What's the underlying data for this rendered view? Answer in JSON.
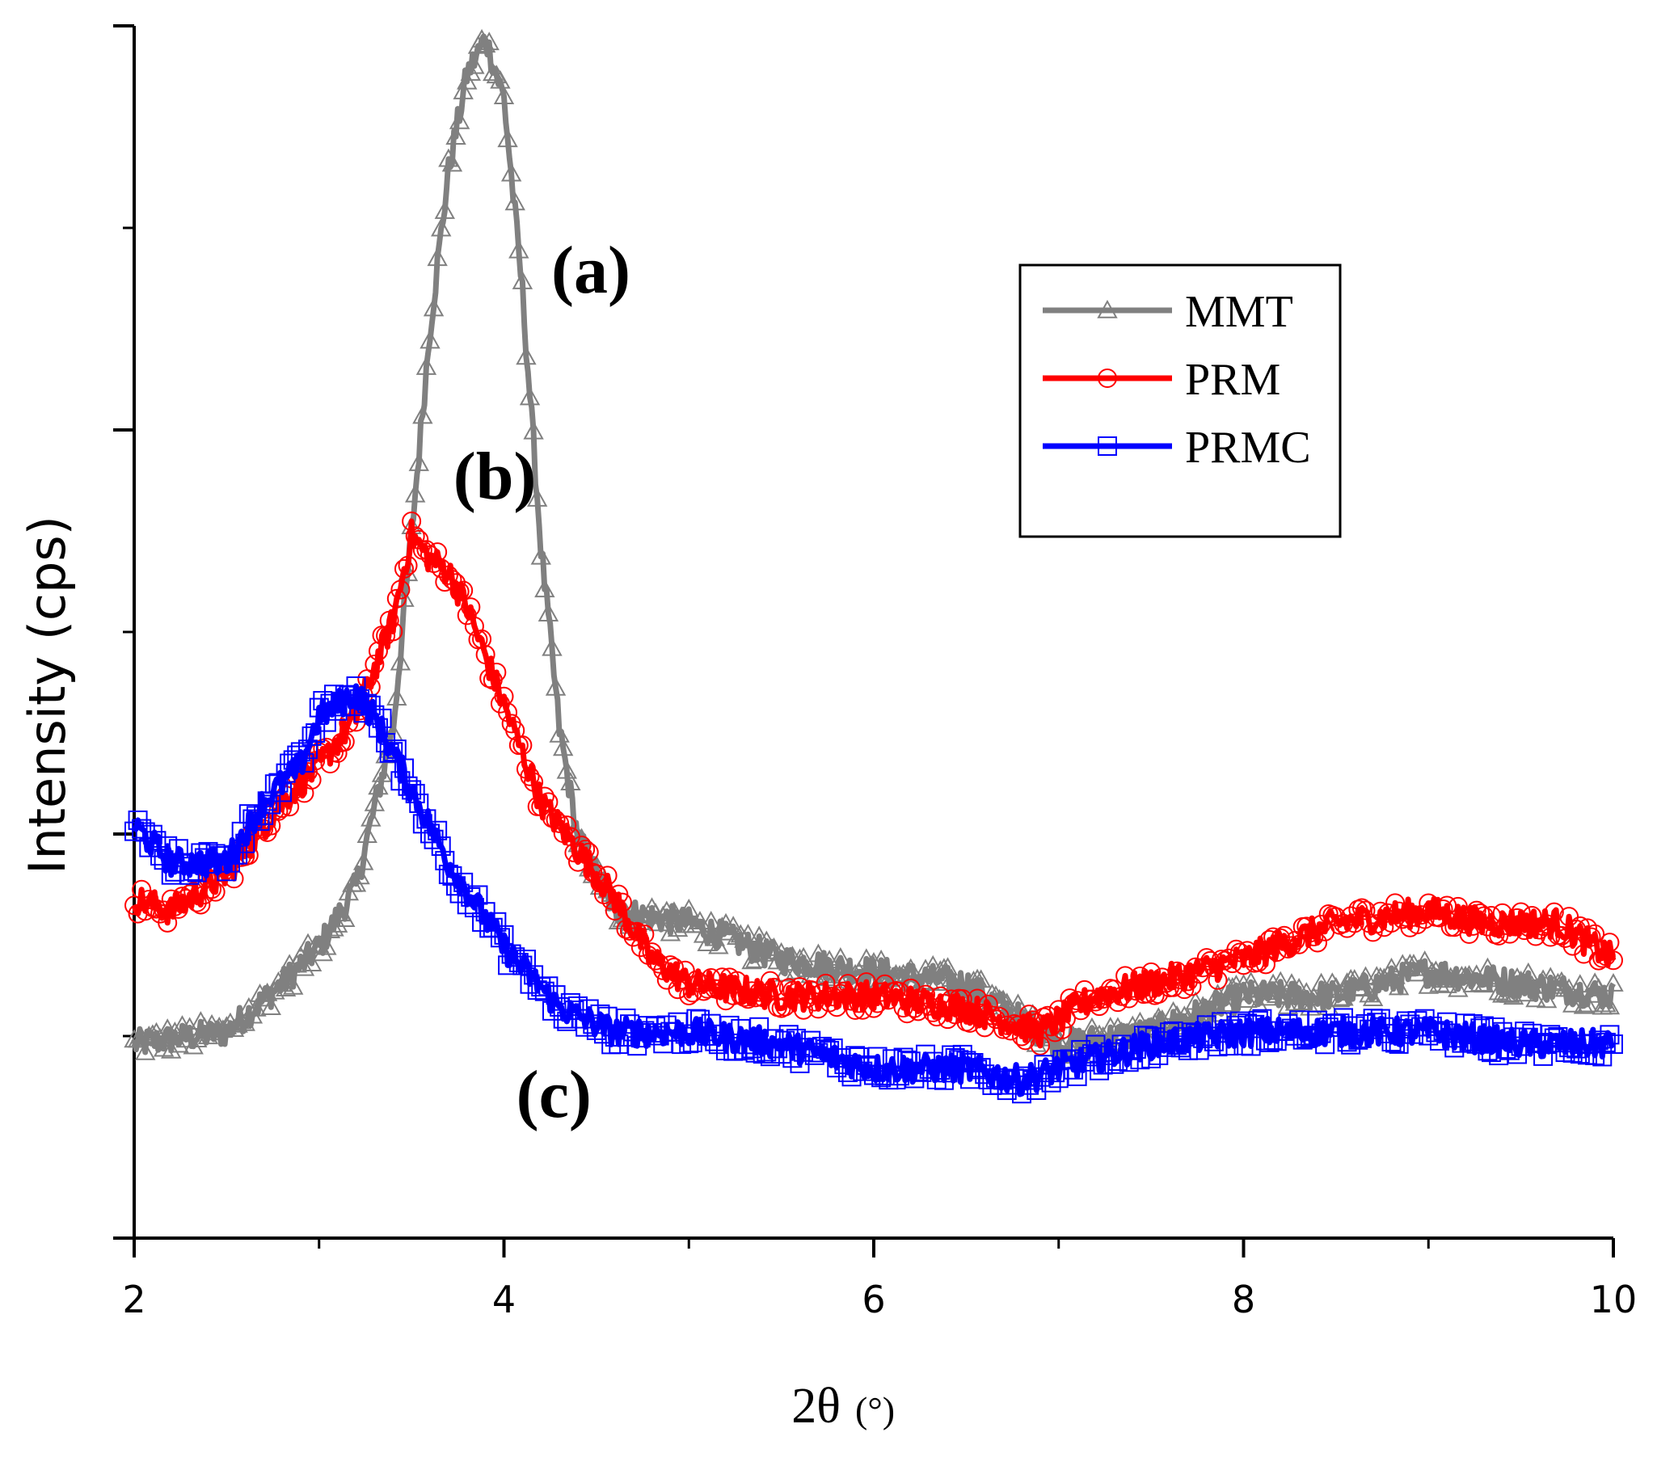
{
  "chart_data": {
    "type": "line",
    "xlabel": "2θ",
    "xlabel_unit": "(°)",
    "ylabel": "Intensity (cps)",
    "xlim": [
      2,
      10
    ],
    "ylim": [
      0,
      100
    ],
    "x_ticks": [
      2,
      4,
      6,
      8,
      10
    ],
    "x_tick_labels": [
      "2",
      "4",
      "6",
      "8",
      "10"
    ],
    "y_tick_labels_shown": false,
    "grid": false,
    "legend_position": "top-right",
    "series": [
      {
        "name": "MMT",
        "color": "#808080",
        "marker": "triangle",
        "x": [
          2.0,
          2.5,
          2.8,
          3.0,
          3.2,
          3.4,
          3.5,
          3.6,
          3.7,
          3.8,
          3.9,
          4.0,
          4.1,
          4.2,
          4.3,
          4.4,
          4.6,
          5.0,
          5.5,
          6.0,
          6.5,
          7.0,
          7.5,
          8.0,
          8.5,
          9.0,
          9.5,
          10.0
        ],
        "y": [
          16,
          17,
          21,
          24,
          29,
          42,
          58,
          75,
          88,
          96,
          99,
          94,
          78,
          57,
          42,
          33,
          27,
          26,
          23,
          22,
          21,
          16,
          17,
          20,
          20,
          22,
          21,
          20
        ]
      },
      {
        "name": "PRM",
        "color": "#ff0000",
        "marker": "circle",
        "x": [
          2.0,
          2.2,
          2.5,
          2.8,
          3.0,
          3.2,
          3.4,
          3.5,
          3.6,
          3.7,
          3.8,
          4.0,
          4.2,
          4.4,
          4.6,
          4.8,
          5.0,
          5.5,
          6.0,
          6.5,
          6.9,
          7.2,
          7.5,
          8.0,
          8.5,
          9.0,
          9.3,
          9.7,
          10.0
        ],
        "y": [
          28,
          27,
          30,
          36,
          39,
          43,
          51,
          58,
          56,
          55,
          52,
          44,
          36,
          32,
          28,
          23,
          21,
          20,
          20,
          19,
          17,
          20,
          21,
          23,
          26,
          27,
          26,
          26,
          23
        ]
      },
      {
        "name": "PRMC",
        "color": "#0000ff",
        "marker": "square",
        "x": [
          2.0,
          2.2,
          2.5,
          2.7,
          2.9,
          3.0,
          3.1,
          3.2,
          3.3,
          3.5,
          3.7,
          4.0,
          4.3,
          4.6,
          5.0,
          5.5,
          6.0,
          6.5,
          6.8,
          7.0,
          7.5,
          8.0,
          8.5,
          9.0,
          9.5,
          10.0
        ],
        "y": [
          34,
          31,
          31,
          36,
          39,
          43,
          44,
          45,
          43,
          37,
          31,
          24,
          19,
          17,
          17,
          16,
          14,
          14,
          13,
          14,
          16,
          17,
          17,
          17,
          16,
          16
        ]
      }
    ],
    "annotations": [
      {
        "text": "(a)",
        "x": 4.47,
        "y": 78
      },
      {
        "text": "(b)",
        "x": 3.95,
        "y": 61
      },
      {
        "text": "(c)",
        "x": 4.27,
        "y": 10
      }
    ]
  }
}
